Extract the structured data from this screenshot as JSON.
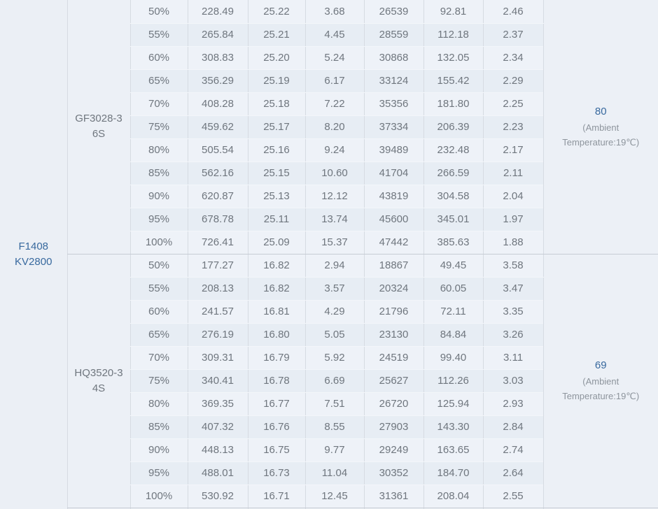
{
  "motor": {
    "model": "F1408",
    "kv": "KV2800"
  },
  "sections": [
    {
      "propeller": "GF3028-3 6S",
      "temperature": "80",
      "ambient_note": "(Ambient Temperature:19℃)",
      "rows": [
        [
          "50%",
          "228.49",
          "25.22",
          "3.68",
          "26539",
          "92.81",
          "2.46"
        ],
        [
          "55%",
          "265.84",
          "25.21",
          "4.45",
          "28559",
          "112.18",
          "2.37"
        ],
        [
          "60%",
          "308.83",
          "25.20",
          "5.24",
          "30868",
          "132.05",
          "2.34"
        ],
        [
          "65%",
          "356.29",
          "25.19",
          "6.17",
          "33124",
          "155.42",
          "2.29"
        ],
        [
          "70%",
          "408.28",
          "25.18",
          "7.22",
          "35356",
          "181.80",
          "2.25"
        ],
        [
          "75%",
          "459.62",
          "25.17",
          "8.20",
          "37334",
          "206.39",
          "2.23"
        ],
        [
          "80%",
          "505.54",
          "25.16",
          "9.24",
          "39489",
          "232.48",
          "2.17"
        ],
        [
          "85%",
          "562.16",
          "25.15",
          "10.60",
          "41704",
          "266.59",
          "2.11"
        ],
        [
          "90%",
          "620.87",
          "25.13",
          "12.12",
          "43819",
          "304.58",
          "2.04"
        ],
        [
          "95%",
          "678.78",
          "25.11",
          "13.74",
          "45600",
          "345.01",
          "1.97"
        ],
        [
          "100%",
          "726.41",
          "25.09",
          "15.37",
          "47442",
          "385.63",
          "1.88"
        ]
      ]
    },
    {
      "propeller": "HQ3520-3 4S",
      "temperature": "69",
      "ambient_note": "(Ambient Temperature:19℃)",
      "rows": [
        [
          "50%",
          "177.27",
          "16.82",
          "2.94",
          "18867",
          "49.45",
          "3.58"
        ],
        [
          "55%",
          "208.13",
          "16.82",
          "3.57",
          "20324",
          "60.05",
          "3.47"
        ],
        [
          "60%",
          "241.57",
          "16.81",
          "4.29",
          "21796",
          "72.11",
          "3.35"
        ],
        [
          "65%",
          "276.19",
          "16.80",
          "5.05",
          "23130",
          "84.84",
          "3.26"
        ],
        [
          "70%",
          "309.31",
          "16.79",
          "5.92",
          "24519",
          "99.40",
          "3.11"
        ],
        [
          "75%",
          "340.41",
          "16.78",
          "6.69",
          "25627",
          "112.26",
          "3.03"
        ],
        [
          "80%",
          "369.35",
          "16.77",
          "7.51",
          "26720",
          "125.94",
          "2.93"
        ],
        [
          "85%",
          "407.32",
          "16.76",
          "8.55",
          "27903",
          "143.30",
          "2.84"
        ],
        [
          "90%",
          "448.13",
          "16.75",
          "9.77",
          "29249",
          "163.65",
          "2.74"
        ],
        [
          "95%",
          "488.01",
          "16.73",
          "11.04",
          "30352",
          "184.70",
          "2.64"
        ],
        [
          "100%",
          "530.92",
          "16.71",
          "12.45",
          "31361",
          "208.04",
          "2.55"
        ]
      ]
    }
  ],
  "colors": {
    "accent_blue": "#38699e",
    "text_gray": "#6f767e",
    "note_gray": "#8e959d",
    "row_light": "#eef2f8",
    "row_dark": "#e7edf4",
    "merged_cell_bg": "#ecf0f6",
    "column_border": "#d6dbe2",
    "row_border": "#f3f6fa",
    "section_border": "#c7ccd4"
  }
}
